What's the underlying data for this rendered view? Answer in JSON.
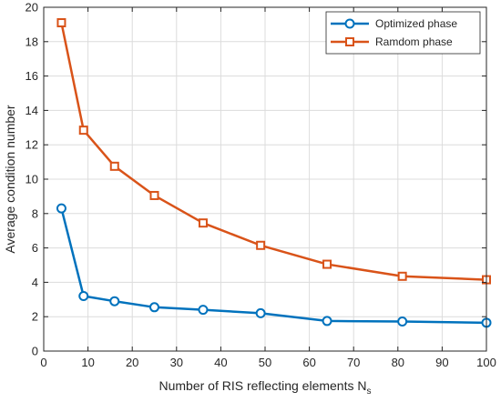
{
  "chart_data": {
    "type": "line",
    "xlabel": "Number of RIS reflecting elements N",
    "xlabel_subscript": "s",
    "ylabel": "Average  condition number",
    "xlim": [
      0,
      100
    ],
    "ylim": [
      0,
      20
    ],
    "xticks": [
      0,
      10,
      20,
      30,
      40,
      50,
      60,
      70,
      80,
      90,
      100
    ],
    "yticks": [
      0,
      2,
      4,
      6,
      8,
      10,
      12,
      14,
      16,
      18,
      20
    ],
    "grid": true,
    "legend_position": "top-right",
    "x": [
      4,
      9,
      16,
      25,
      36,
      49,
      64,
      81,
      100
    ],
    "series": [
      {
        "name": "Optimized phase",
        "color": "#0072BD",
        "marker": "circle",
        "values": [
          8.3,
          3.2,
          2.9,
          2.55,
          2.4,
          2.2,
          1.75,
          1.72,
          1.65
        ]
      },
      {
        "name": "Ramdom phase",
        "color": "#D95319",
        "marker": "square",
        "values": [
          19.1,
          12.85,
          10.75,
          9.05,
          7.45,
          6.15,
          5.05,
          4.35,
          4.15
        ]
      }
    ]
  }
}
